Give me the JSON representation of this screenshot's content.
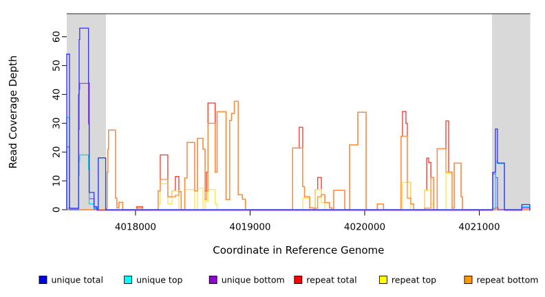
{
  "figure": {
    "background": "#ffffff"
  },
  "chart_data": {
    "type": "line",
    "subtype": "step",
    "title": "",
    "xlabel": "Coordinate in Reference Genome",
    "ylabel": "Read Coverage Depth",
    "xlim": [
      4017400,
      4021445
    ],
    "ylim": [
      0,
      68
    ],
    "grid": false,
    "legend_position": "bottom",
    "x_ticks": [
      {
        "value": 4018000,
        "label": "4018000"
      },
      {
        "value": 4019000,
        "label": "4019000"
      },
      {
        "value": 4020000,
        "label": "4020000"
      },
      {
        "value": 4021000,
        "label": "4021000"
      }
    ],
    "y_ticks": [
      {
        "value": 0,
        "label": "0"
      },
      {
        "value": 10,
        "label": "10"
      },
      {
        "value": 20,
        "label": "20"
      },
      {
        "value": 30,
        "label": "30"
      },
      {
        "value": 40,
        "label": "40"
      },
      {
        "value": 50,
        "label": "50"
      },
      {
        "value": 60,
        "label": "60"
      }
    ],
    "highlight_regions": [
      {
        "x_start": 4017400,
        "x_end": 4017742,
        "color": "#d9d9d9"
      },
      {
        "x_start": 4021111,
        "x_end": 4021445,
        "color": "#d9d9d9"
      }
    ],
    "draw_order": [
      3,
      4,
      5,
      2,
      1,
      0
    ],
    "series": [
      {
        "name": "unique total",
        "line_color": "#2f2fff",
        "swatch_color": "#0000e0",
        "steps": [
          [
            4017400,
            54
          ],
          [
            4017424,
            0.5
          ],
          [
            4017503,
            40
          ],
          [
            4017508,
            59
          ],
          [
            4017513,
            63
          ],
          [
            4017590,
            44
          ],
          [
            4017596,
            6
          ],
          [
            4017638,
            1
          ],
          [
            4017664,
            0
          ],
          [
            4017675,
            18
          ],
          [
            4017740,
            0
          ],
          [
            4021117,
            13
          ],
          [
            4021141,
            28
          ],
          [
            4021159,
            16.2
          ],
          [
            4021219,
            0
          ],
          [
            4021371,
            1.8
          ],
          [
            4021441,
            0
          ]
        ]
      },
      {
        "name": "unique top",
        "line_color": "#00d9e6",
        "swatch_color": "#00ffff",
        "steps": [
          [
            4017400,
            32
          ],
          [
            4017424,
            0.3
          ],
          [
            4017503,
            12
          ],
          [
            4017508,
            17
          ],
          [
            4017513,
            19
          ],
          [
            4017590,
            14
          ],
          [
            4017596,
            2
          ],
          [
            4017638,
            0.6
          ],
          [
            4017664,
            0
          ],
          [
            4017675,
            18
          ],
          [
            4017740,
            0
          ],
          [
            4021117,
            0.4
          ],
          [
            4021141,
            16.7
          ],
          [
            4021159,
            16
          ],
          [
            4021219,
            0
          ],
          [
            4021371,
            1
          ],
          [
            4021441,
            0
          ]
        ]
      },
      {
        "name": "unique bottom",
        "line_color": "#9b3df0",
        "swatch_color": "#9400d3",
        "steps": [
          [
            4017400,
            22
          ],
          [
            4017424,
            0.2
          ],
          [
            4017503,
            28
          ],
          [
            4017508,
            42
          ],
          [
            4017513,
            44
          ],
          [
            4017590,
            30
          ],
          [
            4017596,
            4
          ],
          [
            4017638,
            0.4
          ],
          [
            4017664,
            0
          ],
          [
            4021117,
            12.6
          ],
          [
            4021141,
            11.3
          ],
          [
            4021159,
            0.2
          ],
          [
            4021219,
            0
          ],
          [
            4021371,
            0.8
          ],
          [
            4021441,
            0
          ]
        ]
      },
      {
        "name": "repeat total",
        "line_color": "#f53126",
        "swatch_color": "#ff0000",
        "steps": [
          [
            4017415,
            0.7
          ],
          [
            4017428,
            0
          ],
          [
            4017645,
            0.7
          ],
          [
            4017658,
            0
          ],
          [
            4017745,
            0.5
          ],
          [
            4017753,
            13
          ],
          [
            4017759,
            21
          ],
          [
            4017765,
            27.6
          ],
          [
            4017826,
            4
          ],
          [
            4017838,
            0.7
          ],
          [
            4017856,
            2.6
          ],
          [
            4017888,
            0
          ],
          [
            4018010,
            1
          ],
          [
            4018062,
            0
          ],
          [
            4018198,
            6.5
          ],
          [
            4018216,
            19
          ],
          [
            4018282,
            4.5
          ],
          [
            4018318,
            6.5
          ],
          [
            4018348,
            11.5
          ],
          [
            4018378,
            6.3
          ],
          [
            4018398,
            0
          ],
          [
            4018430,
            11
          ],
          [
            4018450,
            23.3
          ],
          [
            4018517,
            6.5
          ],
          [
            4018541,
            24.8
          ],
          [
            4018589,
            21
          ],
          [
            4018607,
            6.5
          ],
          [
            4018619,
            13
          ],
          [
            4018632,
            37
          ],
          [
            4018695,
            13
          ],
          [
            4018712,
            34
          ],
          [
            4018790,
            3.5
          ],
          [
            4018822,
            31
          ],
          [
            4018838,
            33.4
          ],
          [
            4018862,
            37.6
          ],
          [
            4018896,
            5.2
          ],
          [
            4018932,
            3.6
          ],
          [
            4018960,
            0
          ],
          [
            4019370,
            21.4
          ],
          [
            4019429,
            28.6
          ],
          [
            4019459,
            8
          ],
          [
            4019475,
            4.5
          ],
          [
            4019520,
            0.7
          ],
          [
            4019555,
            0
          ],
          [
            4019568,
            7
          ],
          [
            4019590,
            11.2
          ],
          [
            4019622,
            5.2
          ],
          [
            4019652,
            2.4
          ],
          [
            4019694,
            0.7
          ],
          [
            4019712,
            0
          ],
          [
            4019730,
            6.7
          ],
          [
            4019826,
            0
          ],
          [
            4019868,
            22.5
          ],
          [
            4019940,
            33.8
          ],
          [
            4020012,
            0
          ],
          [
            4020110,
            2
          ],
          [
            4020165,
            0
          ],
          [
            4020318,
            25.5
          ],
          [
            4020330,
            34.1
          ],
          [
            4020360,
            30
          ],
          [
            4020372,
            9.5
          ],
          [
            4020402,
            2
          ],
          [
            4020428,
            0
          ],
          [
            4020523,
            6.7
          ],
          [
            4020541,
            17.9
          ],
          [
            4020559,
            16.4
          ],
          [
            4020577,
            11.2
          ],
          [
            4020601,
            0
          ],
          [
            4020633,
            21.2
          ],
          [
            4020709,
            30.8
          ],
          [
            4020733,
            13.1
          ],
          [
            4020763,
            0.5
          ],
          [
            4020781,
            16.2
          ],
          [
            4020841,
            4.5
          ],
          [
            4020853,
            0
          ],
          [
            4021141,
            0.7
          ],
          [
            4021165,
            0
          ]
        ]
      },
      {
        "name": "repeat top",
        "line_color": "#fbe54a",
        "swatch_color": "#ffff00",
        "steps": [
          [
            4018198,
            2
          ],
          [
            4018216,
            9
          ],
          [
            4018282,
            2
          ],
          [
            4018318,
            6.5
          ],
          [
            4018378,
            0
          ],
          [
            4018430,
            7
          ],
          [
            4018517,
            0
          ],
          [
            4018541,
            7.5
          ],
          [
            4018589,
            0
          ],
          [
            4018607,
            3
          ],
          [
            4018632,
            7
          ],
          [
            4018695,
            2
          ],
          [
            4018712,
            0
          ],
          [
            4019459,
            4
          ],
          [
            4019520,
            0
          ],
          [
            4019568,
            7
          ],
          [
            4019622,
            2.4
          ],
          [
            4019652,
            0
          ],
          [
            4020330,
            9.5
          ],
          [
            4020402,
            0
          ],
          [
            4020523,
            6.7
          ],
          [
            4020577,
            2
          ],
          [
            4020601,
            0
          ],
          [
            4020709,
            12.6
          ],
          [
            4020763,
            0
          ]
        ]
      },
      {
        "name": "repeat bottom",
        "line_color": "#ff8c33",
        "swatch_color": "#ff9900",
        "steps": [
          [
            4017415,
            0.7
          ],
          [
            4017428,
            0
          ],
          [
            4017645,
            0.7
          ],
          [
            4017658,
            0
          ],
          [
            4017745,
            0.5
          ],
          [
            4017753,
            13
          ],
          [
            4017759,
            21
          ],
          [
            4017765,
            27.6
          ],
          [
            4017826,
            4
          ],
          [
            4017838,
            0.7
          ],
          [
            4017856,
            2.6
          ],
          [
            4017888,
            0
          ],
          [
            4018010,
            0.5
          ],
          [
            4018062,
            0
          ],
          [
            4018198,
            6.5
          ],
          [
            4018216,
            10.5
          ],
          [
            4018282,
            4.5
          ],
          [
            4018348,
            5
          ],
          [
            4018378,
            6.3
          ],
          [
            4018398,
            0
          ],
          [
            4018430,
            11
          ],
          [
            4018450,
            23.3
          ],
          [
            4018517,
            6.5
          ],
          [
            4018541,
            24.8
          ],
          [
            4018589,
            21
          ],
          [
            4018607,
            3.5
          ],
          [
            4018619,
            6.5
          ],
          [
            4018632,
            30
          ],
          [
            4018695,
            13
          ],
          [
            4018712,
            34
          ],
          [
            4018790,
            3.5
          ],
          [
            4018822,
            31
          ],
          [
            4018838,
            33.4
          ],
          [
            4018862,
            37.6
          ],
          [
            4018896,
            5.2
          ],
          [
            4018932,
            3.6
          ],
          [
            4018960,
            0
          ],
          [
            4019370,
            21.4
          ],
          [
            4019459,
            8
          ],
          [
            4019475,
            4.5
          ],
          [
            4019520,
            0.7
          ],
          [
            4019555,
            0
          ],
          [
            4019568,
            0.5
          ],
          [
            4019590,
            4.5
          ],
          [
            4019622,
            5.2
          ],
          [
            4019652,
            2.4
          ],
          [
            4019694,
            0.7
          ],
          [
            4019712,
            0
          ],
          [
            4019730,
            6.7
          ],
          [
            4019826,
            0
          ],
          [
            4019868,
            22.5
          ],
          [
            4019940,
            33.8
          ],
          [
            4020012,
            0
          ],
          [
            4020110,
            2
          ],
          [
            4020165,
            0
          ],
          [
            4020318,
            25.5
          ],
          [
            4020372,
            4
          ],
          [
            4020402,
            2
          ],
          [
            4020428,
            0
          ],
          [
            4020523,
            0.5
          ],
          [
            4020577,
            11.2
          ],
          [
            4020601,
            0
          ],
          [
            4020633,
            21.2
          ],
          [
            4020709,
            13.1
          ],
          [
            4020763,
            0.5
          ],
          [
            4020781,
            16.2
          ],
          [
            4020841,
            4.5
          ],
          [
            4020853,
            0
          ],
          [
            4021141,
            0.7
          ],
          [
            4021165,
            0
          ]
        ]
      }
    ]
  }
}
